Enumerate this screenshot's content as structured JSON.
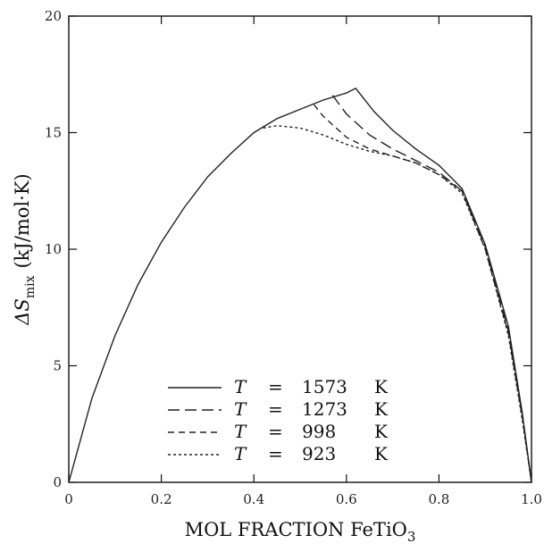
{
  "chart_data": {
    "type": "line",
    "title": "",
    "xlabel": "MOL FRACTION FeTiO",
    "xlabel_subscript": "3",
    "ylabel": "ΔS",
    "ylabel_subscript": "mix",
    "ylabel_unit": "(kJ/mol·K)",
    "xlim": [
      0,
      1
    ],
    "ylim": [
      0,
      20
    ],
    "x_ticks": [
      0,
      0.2,
      0.4,
      0.6,
      0.8,
      1.0
    ],
    "x_tick_labels": [
      "0",
      "0.2",
      "0.4",
      "0.6",
      "0.8",
      "1.0"
    ],
    "y_ticks": [
      0,
      5,
      10,
      15,
      20
    ],
    "y_tick_labels": [
      "0",
      "5",
      "10",
      "15",
      "20"
    ],
    "grid": false,
    "legend_position": "bottom-center",
    "series": [
      {
        "name": "T = 1573 K",
        "T_symbol": "T",
        "eq": "=",
        "value": "1573",
        "unit": "K",
        "dash": "solid",
        "x": [
          0,
          0.05,
          0.1,
          0.15,
          0.2,
          0.25,
          0.3,
          0.35,
          0.4,
          0.45,
          0.5,
          0.55,
          0.6,
          0.62,
          0.66,
          0.7,
          0.75,
          0.8,
          0.85,
          0.9,
          0.95,
          0.98,
          1.0
        ],
        "values": [
          0,
          3.6,
          6.3,
          8.5,
          10.3,
          11.8,
          13.1,
          14.1,
          15.0,
          15.6,
          16.0,
          16.4,
          16.7,
          16.9,
          15.9,
          15.1,
          14.3,
          13.6,
          12.6,
          10.2,
          6.7,
          3.0,
          0
        ]
      },
      {
        "name": "T = 1273 K",
        "T_symbol": "T",
        "eq": "=",
        "value": "1273",
        "unit": "K",
        "dash": "long-dash",
        "x": [
          0.57,
          0.6,
          0.65,
          0.7,
          0.75,
          0.8,
          0.85,
          0.9,
          0.95,
          0.98,
          1.0
        ],
        "values": [
          16.6,
          15.8,
          14.9,
          14.3,
          13.8,
          13.3,
          12.5,
          10.1,
          6.5,
          2.9,
          0
        ]
      },
      {
        "name": "T = 998 K",
        "T_symbol": "T",
        "eq": "=",
        "value": "998",
        "unit": "K",
        "dash": "short-dash",
        "x": [
          0.53,
          0.55,
          0.6,
          0.65,
          0.7,
          0.75,
          0.8,
          0.85,
          0.9,
          0.95,
          0.98,
          1.0
        ],
        "values": [
          16.2,
          15.7,
          14.8,
          14.3,
          14.0,
          13.7,
          13.2,
          12.5,
          10.0,
          6.4,
          2.8,
          0
        ]
      },
      {
        "name": "T = 923 K",
        "T_symbol": "T",
        "eq": "=",
        "value": "923",
        "unit": "K",
        "dash": "dotted",
        "x": [
          0.42,
          0.45,
          0.5,
          0.55,
          0.6,
          0.65,
          0.7,
          0.75,
          0.8,
          0.85,
          0.9,
          0.95,
          0.98,
          1.0
        ],
        "values": [
          15.2,
          15.3,
          15.2,
          14.9,
          14.5,
          14.2,
          14.0,
          13.7,
          13.2,
          12.4,
          10.0,
          6.3,
          2.7,
          0
        ]
      }
    ]
  }
}
